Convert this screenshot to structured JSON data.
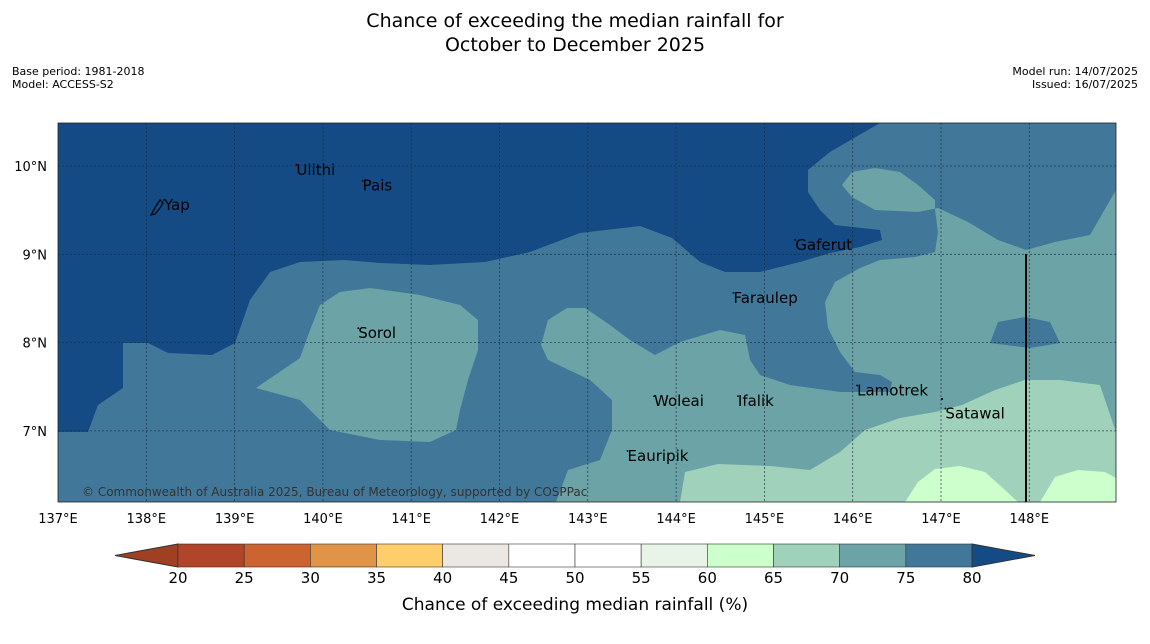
{
  "title": {
    "line1": "Chance of exceeding the median rainfall for",
    "line2": "October to December 2025"
  },
  "meta_left": {
    "base_period": "Base period: 1981-2018",
    "model": "Model: ACCESS-S2"
  },
  "meta_right": {
    "model_run": "Model run: 14/07/2025",
    "issued": "Issued: 16/07/2025"
  },
  "map": {
    "lon_labels": [
      "137°E",
      "138°E",
      "139°E",
      "140°E",
      "141°E",
      "142°E",
      "143°E",
      "144°E",
      "145°E",
      "146°E",
      "147°E",
      "148°E"
    ],
    "lat_labels": [
      "10°N",
      "9°N",
      "8°N",
      "7°N"
    ],
    "places": [
      {
        "name": "Yap",
        "lon": 138.2,
        "lat": 9.5
      },
      {
        "name": "Ulithi",
        "lon": 139.7,
        "lat": 9.9
      },
      {
        "name": "Pais",
        "lon": 140.45,
        "lat": 9.72
      },
      {
        "name": "Gaferut",
        "lon": 145.35,
        "lat": 9.05
      },
      {
        "name": "Faraulep",
        "lon": 144.65,
        "lat": 8.45
      },
      {
        "name": "Sorol",
        "lon": 140.4,
        "lat": 8.05
      },
      {
        "name": "Lamotrek",
        "lon": 146.05,
        "lat": 7.4
      },
      {
        "name": "Woleai",
        "lon": 143.75,
        "lat": 7.28
      },
      {
        "name": "Ifalik",
        "lon": 144.7,
        "lat": 7.28
      },
      {
        "name": "Satawal",
        "lon": 147.05,
        "lat": 7.14
      },
      {
        "name": "Eauripik",
        "lon": 143.45,
        "lat": 6.66
      }
    ],
    "copyright": "© Commonwealth of Australia 2025, Bureau of Meteorology, supported by COSPPac"
  },
  "colors": {
    "ocean_outer": "#144b85",
    "band_75_80": "#41789a",
    "band_70_75": "#6ba3a6",
    "band_65_70": "#9fd1bb",
    "band_60_65": "#ccffcc",
    "grid": "#1c2a3a"
  },
  "colorbar": {
    "label": "Chance of exceeding median rainfall (%)",
    "ticks": [
      "20",
      "25",
      "30",
      "35",
      "40",
      "45",
      "50",
      "55",
      "60",
      "65",
      "70",
      "75",
      "80"
    ],
    "colors": [
      "#b0452a",
      "#cc6432",
      "#e09447",
      "#fece6b",
      "#ebe7e2",
      "#ffffff",
      "#ffffff",
      "#e8f4e8",
      "#ccffcc",
      "#9fd1bb",
      "#6ba3a6",
      "#41789a"
    ],
    "under_color": "#a13f23",
    "over_color": "#144b85"
  }
}
